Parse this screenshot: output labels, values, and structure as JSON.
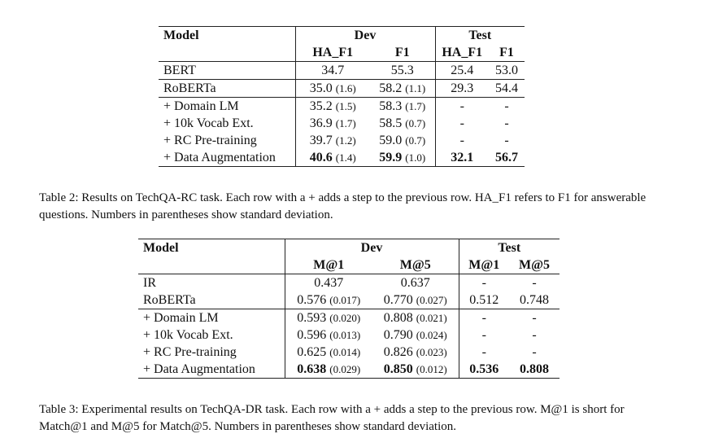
{
  "table2": {
    "headers": {
      "model": "Model",
      "dev": "Dev",
      "test": "Test",
      "dev_cols": [
        "HA_F1",
        "F1"
      ],
      "test_cols": [
        "HA_F1",
        "F1"
      ]
    },
    "rows": [
      {
        "model": "BERT",
        "dev1": "34.7",
        "dev1_sd": "",
        "dev2": "55.3",
        "dev2_sd": "",
        "test1": "25.4",
        "test2": "53.0"
      },
      {
        "model": "RoBERTa",
        "dev1": "35.0",
        "dev1_sd": "(1.6)",
        "dev2": "58.2",
        "dev2_sd": "(1.1)",
        "test1": "29.3",
        "test2": "54.4"
      },
      {
        "model": "+ Domain LM",
        "dev1": "35.2",
        "dev1_sd": "(1.5)",
        "dev2": "58.3",
        "dev2_sd": "(1.7)",
        "test1": "-",
        "test2": "-"
      },
      {
        "model": "+ 10k Vocab Ext.",
        "dev1": "36.9",
        "dev1_sd": "(1.7)",
        "dev2": "58.5",
        "dev2_sd": "(0.7)",
        "test1": "-",
        "test2": "-"
      },
      {
        "model": "+ RC Pre-training",
        "dev1": "39.7",
        "dev1_sd": "(1.2)",
        "dev2": "59.0",
        "dev2_sd": "(0.7)",
        "test1": "-",
        "test2": "-"
      },
      {
        "model": "+ Data Augmentation",
        "dev1": "40.6",
        "dev1_sd": "(1.4)",
        "dev2": "59.9",
        "dev2_sd": "(1.0)",
        "test1": "32.1",
        "test2": "56.7"
      }
    ],
    "caption": "Table 2: Results on TechQA-RC task. Each row with a + adds a step to the previous row. HA_F1 refers to F1 for answerable questions. Numbers in parentheses show standard deviation."
  },
  "table3": {
    "headers": {
      "model": "Model",
      "dev": "Dev",
      "test": "Test",
      "dev_cols": [
        "M@1",
        "M@5"
      ],
      "test_cols": [
        "M@1",
        "M@5"
      ]
    },
    "rows": [
      {
        "model": "IR",
        "dev1": "0.437",
        "dev1_sd": "",
        "dev2": "0.637",
        "dev2_sd": "",
        "test1": "-",
        "test2": "-"
      },
      {
        "model": "RoBERTa",
        "dev1": "0.576",
        "dev1_sd": "(0.017)",
        "dev2": "0.770",
        "dev2_sd": "(0.027)",
        "test1": "0.512",
        "test2": "0.748"
      },
      {
        "model": "+ Domain LM",
        "dev1": "0.593",
        "dev1_sd": "(0.020)",
        "dev2": "0.808",
        "dev2_sd": "(0.021)",
        "test1": "-",
        "test2": "-"
      },
      {
        "model": "+ 10k Vocab Ext.",
        "dev1": "0.596",
        "dev1_sd": "(0.013)",
        "dev2": "0.790",
        "dev2_sd": "(0.024)",
        "test1": "-",
        "test2": "-"
      },
      {
        "model": "+ RC Pre-training",
        "dev1": "0.625",
        "dev1_sd": "(0.014)",
        "dev2": "0.826",
        "dev2_sd": "(0.023)",
        "test1": "-",
        "test2": "-"
      },
      {
        "model": "+ Data Augmentation",
        "dev1": "0.638",
        "dev1_sd": "(0.029)",
        "dev2": "0.850",
        "dev2_sd": "(0.012)",
        "test1": "0.536",
        "test2": "0.808"
      }
    ],
    "caption": "Table 3: Experimental results on TechQA-DR task. Each row with a + adds a step to the previous row. M@1 is short for Match@1 and M@5 for Match@5. Numbers in parentheses show standard deviation."
  }
}
